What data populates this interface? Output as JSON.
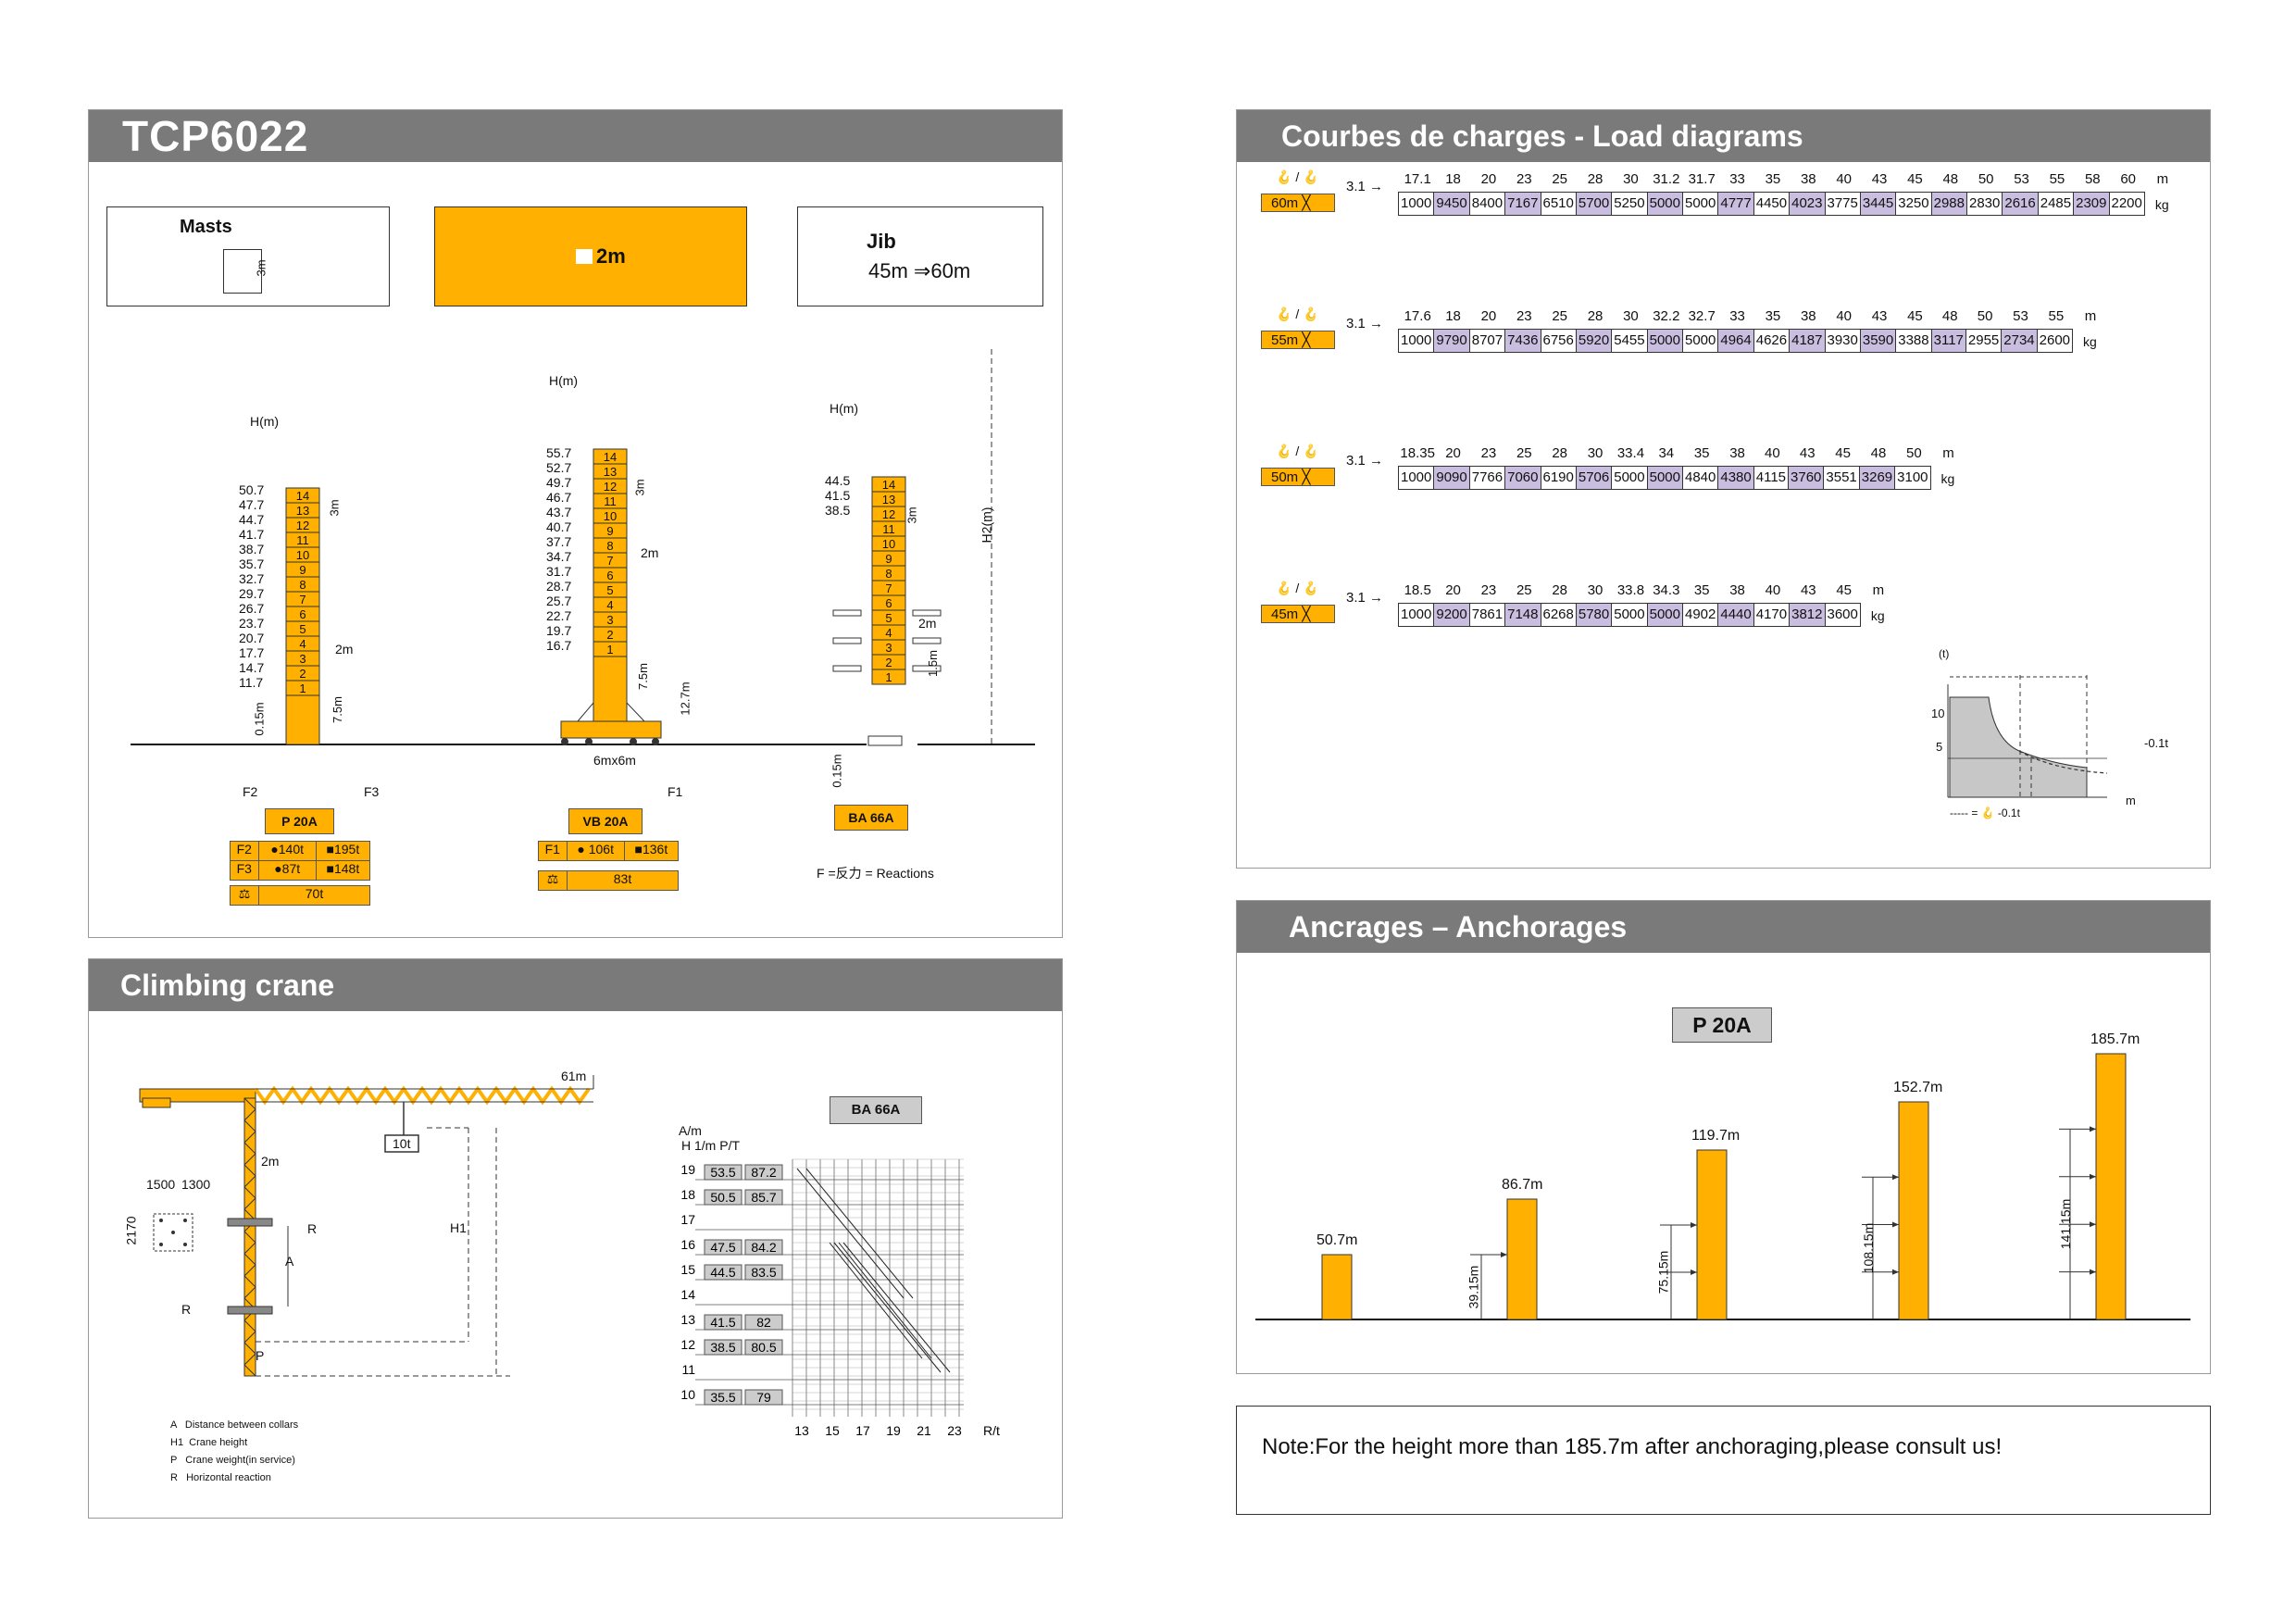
{
  "model": {
    "title": "TCP6022"
  },
  "masts_section": {
    "masts_label": "Masts",
    "masts_height": "3m",
    "mast_width": "2m",
    "jib_label": "Jib",
    "jib_range": "45m ⇒60m"
  },
  "config_p20a": {
    "hlabel": "H(m)",
    "heights": [
      "50.7",
      "47.7",
      "44.7",
      "41.7",
      "38.7",
      "35.7",
      "32.7",
      "29.7",
      "26.7",
      "23.7",
      "20.7",
      "17.7",
      "14.7",
      "11.7"
    ],
    "section_label": "3m",
    "width_label": "2m",
    "base_label": "7.5m",
    "ground_label": "0.15m",
    "f2": "F2",
    "f3": "F3",
    "name": "P 20A",
    "rows": [
      {
        "k": "F2",
        "a": "●140t",
        "b": "■195t"
      },
      {
        "k": "F3",
        "a": "●87t",
        "b": "■148t"
      }
    ],
    "weight": "70t"
  },
  "config_vb20a": {
    "hlabel": "H(m)",
    "heights": [
      "55.7",
      "52.7",
      "49.7",
      "46.7",
      "43.7",
      "40.7",
      "37.7",
      "34.7",
      "31.7",
      "28.7",
      "25.7",
      "22.7",
      "19.7",
      "16.7"
    ],
    "section_label": "3m",
    "width_label": "2m",
    "base_label": "7.5m",
    "total_label": "12.7m",
    "base_dim": "6mx6m",
    "f1": "F1",
    "name": "VB 20A",
    "row": {
      "k": "F1",
      "a": "● 106t",
      "b": "■136t"
    },
    "weight": "83t"
  },
  "config_ba66a": {
    "hlabel": "H(m)",
    "heights": [
      "44.5",
      "41.5",
      "38.5"
    ],
    "section_label": "3m",
    "width_label": "2m",
    "gap_label": "1.5m",
    "ground_label": "0.15m",
    "h2_label": "H2(m)",
    "name": "BA 66A",
    "legend": "F =反力 = Reactions"
  },
  "segments": [
    "14",
    "13",
    "12",
    "11",
    "10",
    "9",
    "8",
    "7",
    "6",
    "5",
    "4",
    "3",
    "2",
    "1"
  ],
  "climbing": {
    "title": "Climbing crane",
    "jib_label": "61m",
    "load_label": "10t",
    "mast_label": "2m",
    "dim_a": "1500",
    "dim_b": "1300",
    "dim_c": "2170",
    "r_label": "R",
    "a_label": "A",
    "h1_label": "H1",
    "p_label": "P",
    "legend": [
      "A   Distance between collars",
      "H1  Crane height",
      "P   Crane weight(in service)",
      "R   Horizontal reaction"
    ],
    "chart_name": "BA 66A",
    "chart_ylabel": "A/m",
    "col_labels": "H 1/m P/T"
  },
  "chart_data": {
    "type": "table",
    "y_axis_ticks": [
      "19",
      "18",
      "17",
      "16",
      "15",
      "14",
      "13",
      "12",
      "11",
      "10"
    ],
    "x_axis_ticks": [
      "13",
      "15",
      "17",
      "19",
      "21",
      "23"
    ],
    "x_unit": "R/t",
    "rows": [
      {
        "a": "19",
        "h": "53.5",
        "p": "87.2"
      },
      {
        "a": "18",
        "h": "50.5",
        "p": "85.7"
      },
      {
        "a": "16",
        "h": "47.5",
        "p": "84.2"
      },
      {
        "a": "15",
        "h": "44.5",
        "p": "83.5"
      },
      {
        "a": "13",
        "h": "41.5",
        "p": "82"
      },
      {
        "a": "12",
        "h": "38.5",
        "p": "80.5"
      },
      {
        "a": "10",
        "h": "35.5",
        "p": "79"
      }
    ]
  },
  "load": {
    "title": "Courbes de charges - Load diagrams",
    "start_label": "3.1",
    "unit_m": "m",
    "unit_kg": "kg",
    "tables": [
      {
        "jib": "60m",
        "dist": [
          "17.1",
          "18",
          "20",
          "23",
          "25",
          "28",
          "30",
          "31.2",
          "31.7",
          "33",
          "35",
          "38",
          "40",
          "43",
          "45",
          "48",
          "50",
          "53",
          "55",
          "58",
          "60"
        ],
        "vals": [
          "1000",
          "9450",
          "8400",
          "7167",
          "6510",
          "5700",
          "5250",
          "5000",
          "5000",
          "4777",
          "4450",
          "4023",
          "3775",
          "3445",
          "3250",
          "2988",
          "2830",
          "2616",
          "2485",
          "2309",
          "2200"
        ]
      },
      {
        "jib": "55m",
        "dist": [
          "17.6",
          "18",
          "20",
          "23",
          "25",
          "28",
          "30",
          "32.2",
          "32.7",
          "33",
          "35",
          "38",
          "40",
          "43",
          "45",
          "48",
          "50",
          "53",
          "55"
        ],
        "vals": [
          "1000",
          "9790",
          "8707",
          "7436",
          "6756",
          "5920",
          "5455",
          "5000",
          "5000",
          "4964",
          "4626",
          "4187",
          "3930",
          "3590",
          "3388",
          "3117",
          "2955",
          "2734",
          "2600"
        ]
      },
      {
        "jib": "50m",
        "dist": [
          "18.35",
          "20",
          "23",
          "25",
          "28",
          "30",
          "33.4",
          "34",
          "35",
          "38",
          "40",
          "43",
          "45",
          "48",
          "50"
        ],
        "vals": [
          "1000",
          "9090",
          "7766",
          "7060",
          "6190",
          "5706",
          "5000",
          "5000",
          "4840",
          "4380",
          "4115",
          "3760",
          "3551",
          "3269",
          "3100"
        ]
      },
      {
        "jib": "45m",
        "dist": [
          "18.5",
          "20",
          "23",
          "25",
          "28",
          "30",
          "33.8",
          "34.3",
          "35",
          "38",
          "40",
          "43",
          "45"
        ],
        "vals": [
          "1000",
          "9200",
          "7861",
          "7148",
          "6268",
          "5780",
          "5000",
          "5000",
          "4902",
          "4440",
          "4170",
          "3812",
          "3600"
        ]
      }
    ],
    "mini_chart": {
      "t_label": "(t)",
      "y10": "10",
      "y5": "5",
      "m_label": "m",
      "minus_label": "-0.1t",
      "legend": "----- = 🪝 -0.1t"
    }
  },
  "anchorages": {
    "title": "Ancrages  – Anchorages",
    "model": "P  20A",
    "towers": [
      {
        "top": "50.7m",
        "anchor": ""
      },
      {
        "top": "86.7m",
        "anchor": "39.15m"
      },
      {
        "top": "119.7m",
        "anchor": "75.15m"
      },
      {
        "top": "152.7m",
        "anchor": "108.15m"
      },
      {
        "top": "185.7m",
        "anchor": "141.15m"
      }
    ]
  },
  "note": {
    "text": "Note:For the height more than 185.7m after anchoraging,please consult us!"
  },
  "colors": {
    "accent": "#ffb000",
    "header": "#7a7a7a",
    "highlight": "#c9bde0"
  }
}
